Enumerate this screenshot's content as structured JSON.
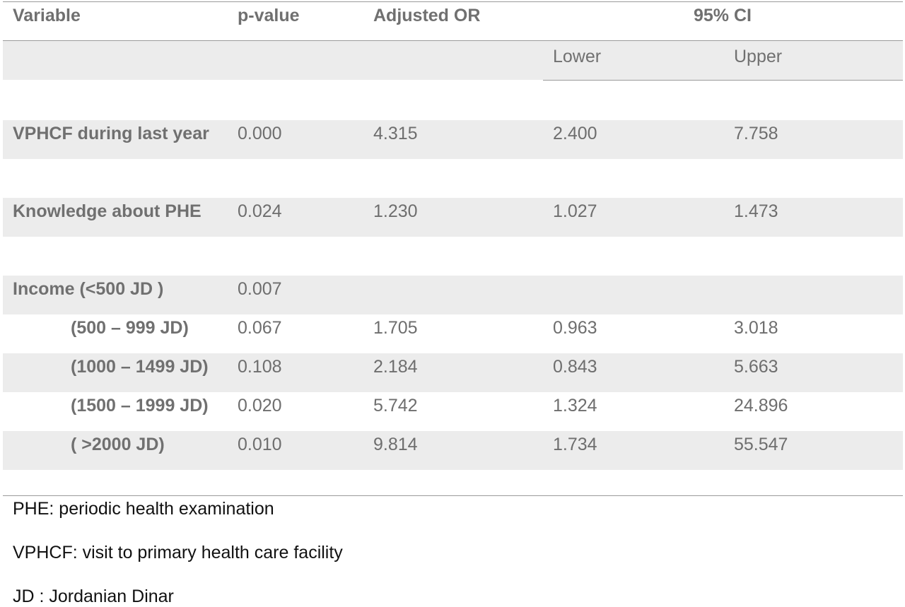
{
  "table": {
    "headers": {
      "variable": "Variable",
      "pvalue": "p-value",
      "adjusted_or": "Adjusted OR",
      "ci": "95% CI",
      "lower": "Lower",
      "upper": "Upper"
    },
    "rows": [
      {
        "variable": "VPHCF during last year",
        "pvalue": "0.000",
        "or": "4.315",
        "lower": "2.400",
        "upper": "7.758"
      },
      {
        "variable": "Knowledge about PHE",
        "pvalue": "0.024",
        "or": "1.230",
        "lower": "1.027",
        "upper": "1.473"
      },
      {
        "variable": "Income (<500 JD )",
        "pvalue": "0.007",
        "or": "",
        "lower": "",
        "upper": ""
      },
      {
        "variable": "(500 – 999 JD)",
        "pvalue": "0.067",
        "or": "1.705",
        "lower": "0.963",
        "upper": "3.018"
      },
      {
        "variable": "(1000 – 1499 JD)",
        "pvalue": "0.108",
        "or": "2.184",
        "lower": "0.843",
        "upper": "5.663"
      },
      {
        "variable": "(1500 – 1999 JD)",
        "pvalue": "0.020",
        "or": "5.742",
        "lower": "1.324",
        "upper": "24.896"
      },
      {
        "variable": "( >2000 JD)",
        "pvalue": "0.010",
        "or": "9.814",
        "lower": "1.734",
        "upper": "55.547"
      }
    ]
  },
  "footnotes": [
    "PHE: periodic health examination",
    "VPHCF: visit to primary health care facility",
    "JD : Jordanian Dinar"
  ]
}
